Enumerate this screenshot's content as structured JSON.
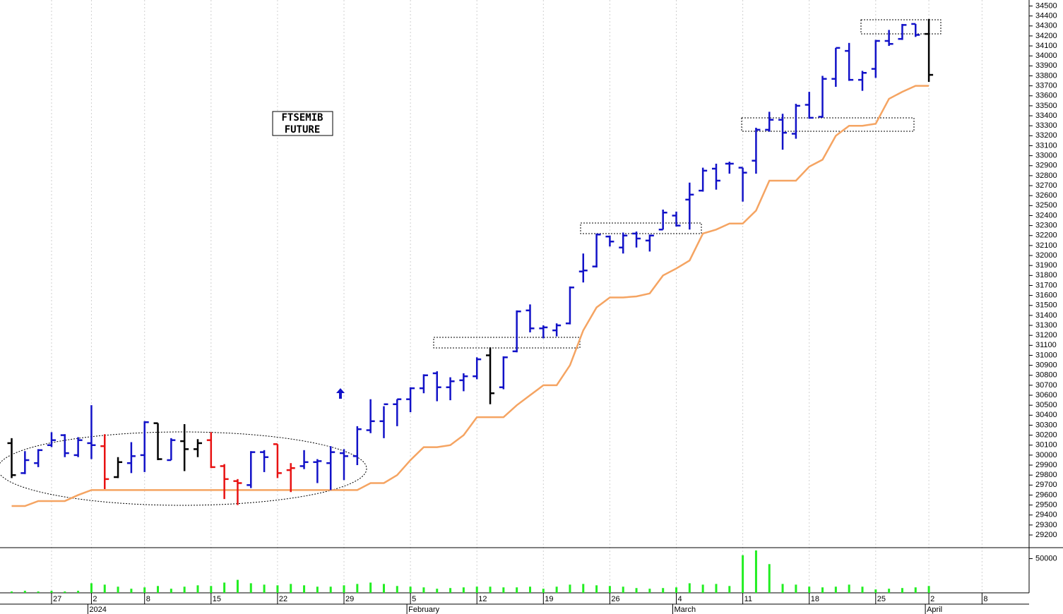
{
  "chart_data": [
    {
      "type": "ohlc",
      "annotation": [
        "FTSEMIB",
        "FUTURE"
      ],
      "open": [
        30120,
        29820,
        29920,
        30100,
        30200,
        30000,
        30120,
        30090,
        29780,
        29920,
        30000,
        30320,
        29950,
        30140,
        30060,
        30150,
        29890,
        29740,
        29700,
        30030,
        30110,
        29850,
        29890,
        29930,
        29920,
        30020,
        29990,
        30250,
        30340,
        30510,
        30560,
        30670,
        30820,
        30680,
        30750,
        30790,
        31000,
        30680,
        31040,
        31450,
        31270,
        31250,
        31320,
        31840,
        31890,
        32190,
        32080,
        32220,
        32150,
        32260,
        32400,
        32560,
        32650,
        32870,
        32920,
        32880,
        32950,
        33260,
        33360,
        33220,
        33510,
        33390,
        33770,
        34050,
        33760,
        33870,
        34150,
        34170,
        34320,
        34220
      ],
      "high": [
        30170,
        30040,
        30060,
        30230,
        30210,
        30180,
        30500,
        30210,
        29980,
        30130,
        30340,
        30320,
        30170,
        30310,
        30160,
        30230,
        29910,
        29760,
        30040,
        30050,
        30110,
        29920,
        30050,
        29960,
        30090,
        30060,
        30290,
        30560,
        30490,
        30560,
        30680,
        30810,
        30840,
        30780,
        30820,
        30980,
        31080,
        30990,
        31450,
        31510,
        31300,
        31320,
        31690,
        32020,
        32220,
        32200,
        32230,
        32240,
        32210,
        32460,
        32440,
        32730,
        32880,
        32920,
        32940,
        32880,
        33280,
        33440,
        33420,
        33520,
        33640,
        33800,
        34080,
        34130,
        33850,
        34160,
        34260,
        34320,
        34320,
        34370
      ],
      "low": [
        29770,
        29810,
        29880,
        30080,
        29980,
        29980,
        29960,
        29660,
        29770,
        29820,
        29830,
        29950,
        29950,
        29840,
        29980,
        29870,
        29560,
        29500,
        29670,
        29830,
        29770,
        29630,
        29860,
        29720,
        29650,
        29750,
        29900,
        30220,
        30170,
        30290,
        30430,
        30620,
        30540,
        30550,
        30640,
        30760,
        30510,
        30660,
        31030,
        31230,
        31170,
        31190,
        31310,
        31730,
        31880,
        32090,
        32020,
        32080,
        32040,
        32260,
        32290,
        32260,
        32640,
        32660,
        32820,
        32540,
        32820,
        33240,
        33060,
        33170,
        33370,
        33380,
        33690,
        33750,
        33650,
        33780,
        34100,
        34160,
        34190,
        33740
      ],
      "close": [
        29800,
        29950,
        30050,
        30150,
        30020,
        30150,
        30100,
        29760,
        29930,
        29990,
        30330,
        29960,
        30150,
        30060,
        30120,
        29880,
        29760,
        29720,
        30030,
        29980,
        29820,
        29870,
        29930,
        29940,
        30030,
        29990,
        30260,
        30340,
        30510,
        30560,
        30670,
        30800,
        30680,
        30740,
        30790,
        30960,
        30620,
        30980,
        31440,
        31270,
        31280,
        31300,
        31680,
        31850,
        32210,
        32140,
        32200,
        32170,
        32200,
        32430,
        32300,
        32610,
        32850,
        32750,
        32920,
        32830,
        33260,
        33360,
        33230,
        33500,
        33380,
        33770,
        34080,
        33760,
        33830,
        34150,
        34120,
        34310,
        34210,
        33810
      ],
      "colors": [
        "#000000",
        "#1212c8",
        "#1212c8",
        "#1212c8",
        "#1212c8",
        "#1212c8",
        "#1212c8",
        "#e81212",
        "#000000",
        "#1212c8",
        "#1212c8",
        "#000000",
        "#1212c8",
        "#000000",
        "#000000",
        "#e81212",
        "#e81212",
        "#e81212",
        "#1212c8",
        "#1212c8",
        "#e81212",
        "#e81212",
        "#1212c8",
        "#1212c8",
        "#1212c8",
        "#1212c8",
        "#1212c8",
        "#1212c8",
        "#1212c8",
        "#1212c8",
        "#1212c8",
        "#1212c8",
        "#1212c8",
        "#1212c8",
        "#1212c8",
        "#1212c8",
        "#000000",
        "#1212c8",
        "#1212c8",
        "#1212c8",
        "#1212c8",
        "#1212c8",
        "#1212c8",
        "#1212c8",
        "#1212c8",
        "#1212c8",
        "#1212c8",
        "#1212c8",
        "#1212c8",
        "#1212c8",
        "#1212c8",
        "#1212c8",
        "#1212c8",
        "#1212c8",
        "#1212c8",
        "#1212c8",
        "#1212c8",
        "#1212c8",
        "#1212c8",
        "#1212c8",
        "#1212c8",
        "#1212c8",
        "#1212c8",
        "#1212c8",
        "#1212c8",
        "#1212c8",
        "#1212c8",
        "#1212c8",
        "#1212c8",
        "#000000"
      ],
      "stop": {
        "color": "#f5a462",
        "values": [
          29490,
          29490,
          29540,
          29540,
          29540,
          29600,
          29650,
          29650,
          29650,
          29650,
          29650,
          29650,
          29650,
          29650,
          29650,
          29650,
          29650,
          29650,
          29650,
          29650,
          29650,
          29650,
          29650,
          29650,
          29650,
          29650,
          29650,
          29720,
          29720,
          29800,
          29950,
          30080,
          30080,
          30100,
          30200,
          30380,
          30380,
          30380,
          30500,
          30600,
          30700,
          30700,
          30900,
          31250,
          31480,
          31580,
          31580,
          31590,
          31620,
          31800,
          31870,
          31950,
          32220,
          32260,
          32320,
          32320,
          32450,
          32750,
          32750,
          32750,
          32890,
          32960,
          33200,
          33300,
          33300,
          33320,
          33570,
          33640,
          33700,
          33700
        ]
      },
      "ylim": [
        29080,
        34560
      ],
      "yticks": [
        29200,
        29300,
        29400,
        29500,
        29600,
        29700,
        29800,
        29900,
        30000,
        30100,
        30200,
        30300,
        30400,
        30500,
        30600,
        30700,
        30800,
        30900,
        31000,
        31100,
        31200,
        31300,
        31400,
        31500,
        31600,
        31700,
        31800,
        31900,
        32000,
        32100,
        32200,
        32300,
        32400,
        32500,
        32600,
        32700,
        32800,
        32900,
        33000,
        33100,
        33200,
        33300,
        33400,
        33500,
        33600,
        33700,
        33800,
        33900,
        34000,
        34100,
        34200,
        34300,
        34400,
        34500
      ]
    },
    {
      "type": "bar",
      "color": "#22ee22",
      "categories": [
        null,
        null,
        null,
        "27",
        null,
        null,
        "2",
        null,
        null,
        null,
        "8",
        null,
        null,
        null,
        null,
        "15",
        null,
        null,
        null,
        null,
        "22",
        null,
        null,
        null,
        null,
        "29",
        null,
        null,
        null,
        null,
        "5",
        null,
        null,
        null,
        null,
        "12",
        null,
        null,
        null,
        null,
        "19",
        null,
        null,
        null,
        null,
        "26",
        null,
        null,
        null,
        null,
        "4",
        null,
        null,
        null,
        null,
        "11",
        null,
        null,
        null,
        null,
        "18",
        null,
        null,
        null,
        null,
        "25",
        null,
        null,
        null,
        "2",
        null,
        null,
        null,
        "8"
      ],
      "months": [
        null,
        null,
        null,
        null,
        null,
        null,
        "2024",
        null,
        null,
        null,
        null,
        null,
        null,
        null,
        null,
        null,
        null,
        null,
        null,
        null,
        null,
        null,
        null,
        null,
        null,
        null,
        null,
        null,
        null,
        null,
        "February",
        null,
        null,
        null,
        null,
        null,
        null,
        null,
        null,
        null,
        null,
        null,
        null,
        null,
        null,
        null,
        null,
        null,
        null,
        null,
        "March",
        null,
        null,
        null,
        null,
        null,
        null,
        null,
        null,
        null,
        null,
        null,
        null,
        null,
        null,
        null,
        null,
        null,
        null,
        "April",
        null,
        null,
        null,
        null
      ],
      "values": [
        2000,
        3000,
        2000,
        3000,
        2000,
        3000,
        14000,
        12000,
        9000,
        6000,
        8000,
        10000,
        6000,
        9000,
        11000,
        10000,
        15000,
        19000,
        14000,
        12000,
        11000,
        13000,
        11000,
        9000,
        9000,
        11000,
        13000,
        15000,
        13000,
        10000,
        9000,
        8000,
        6000,
        7000,
        8000,
        9000,
        9000,
        8000,
        8000,
        9000,
        6000,
        9000,
        12000,
        13000,
        11000,
        10000,
        9000,
        7000,
        6000,
        7000,
        8000,
        14000,
        12000,
        13000,
        10000,
        55000,
        62000,
        42000,
        13000,
        12000,
        9000,
        8000,
        9000,
        12000,
        9000,
        5000,
        6000,
        7000,
        8000,
        10000,
        null,
        null,
        null,
        null
      ],
      "ylim": [
        0,
        65000
      ],
      "yticks": [
        50000
      ]
    }
  ]
}
